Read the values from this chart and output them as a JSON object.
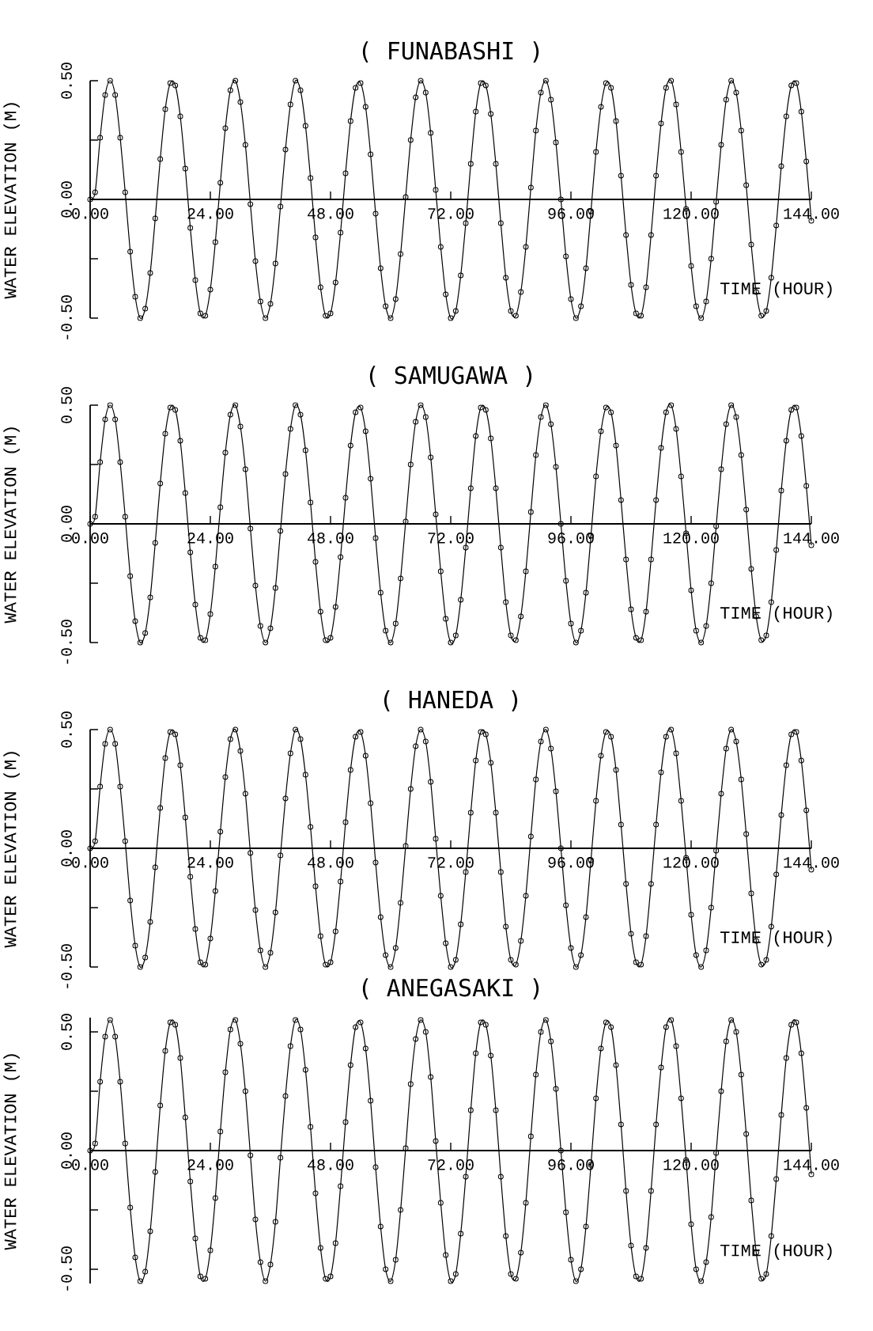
{
  "chart_data": [
    {
      "type": "line",
      "title": "( FUNABASHI )",
      "xlabel": "TIME (HOUR)",
      "ylabel": "WATER ELEVATION (M)",
      "xlim": [
        0,
        144
      ],
      "ylim": [
        -0.5,
        0.5
      ],
      "marker": "circle",
      "xticks": [
        {
          "value": 0,
          "label": "0.00"
        },
        {
          "value": 24,
          "label": "24.00"
        },
        {
          "value": 48,
          "label": "48.00"
        },
        {
          "value": 72,
          "label": "72.00"
        },
        {
          "value": 96,
          "label": "96.00"
        },
        {
          "value": 120,
          "label": "120.00"
        },
        {
          "value": 144,
          "label": "144.00"
        }
      ],
      "yticks": [
        {
          "value": -0.5,
          "label": "-0.50"
        },
        {
          "value": -0.25,
          "label": null
        },
        {
          "value": 0,
          "label": "0.00"
        },
        {
          "value": 0.25,
          "label": null
        },
        {
          "value": 0.5,
          "label": "0.50"
        }
      ],
      "x": [
        0,
        1,
        2,
        3,
        4,
        5,
        6,
        7,
        8,
        9,
        10,
        11,
        12,
        13,
        14,
        15,
        16,
        17,
        18,
        19,
        20,
        21,
        22,
        23,
        24,
        25,
        26,
        27,
        28,
        29,
        30,
        31,
        32,
        33,
        34,
        35,
        36,
        37,
        38,
        39,
        40,
        41,
        42,
        43,
        44,
        45,
        46,
        47,
        48,
        49,
        50,
        51,
        52,
        53,
        54,
        55,
        56,
        57,
        58,
        59,
        60,
        61,
        62,
        63,
        64,
        65,
        66,
        67,
        68,
        69,
        70,
        71,
        72,
        73,
        74,
        75,
        76,
        77,
        78,
        79,
        80,
        81,
        82,
        83,
        84,
        85,
        86,
        87,
        88,
        89,
        90,
        91,
        92,
        93,
        94,
        95,
        96,
        97,
        98,
        99,
        100,
        101,
        102,
        103,
        104,
        105,
        106,
        107,
        108,
        109,
        110,
        111,
        112,
        113,
        114,
        115,
        116,
        117,
        118,
        119,
        120,
        121,
        122,
        123,
        124,
        125,
        126,
        127,
        128,
        129,
        130,
        131,
        132,
        133,
        134,
        135,
        136,
        137,
        138,
        139,
        140,
        141,
        142,
        143,
        144
      ],
      "series": [
        {
          "color": "#000000",
          "values": [
            0.0,
            0.03,
            0.26,
            0.44,
            0.5,
            0.44,
            0.26,
            0.03,
            -0.22,
            -0.41,
            -0.5,
            -0.46,
            -0.31,
            -0.08,
            0.17,
            0.38,
            0.49,
            0.48,
            0.35,
            0.13,
            -0.12,
            -0.34,
            -0.48,
            -0.49,
            -0.38,
            -0.18,
            0.07,
            0.3,
            0.46,
            0.5,
            0.41,
            0.23,
            -0.02,
            -0.26,
            -0.43,
            -0.5,
            -0.44,
            -0.27,
            -0.03,
            0.21,
            0.4,
            0.5,
            0.46,
            0.31,
            0.09,
            -0.16,
            -0.37,
            -0.49,
            -0.48,
            -0.35,
            -0.14,
            0.11,
            0.33,
            0.47,
            0.49,
            0.39,
            0.19,
            -0.06,
            -0.29,
            -0.45,
            -0.5,
            -0.42,
            -0.23,
            0.01,
            0.25,
            0.43,
            0.5,
            0.45,
            0.28,
            0.04,
            -0.2,
            -0.4,
            -0.5,
            -0.47,
            -0.32,
            -0.1,
            0.15,
            0.37,
            0.49,
            0.48,
            0.36,
            0.15,
            -0.1,
            -0.33,
            -0.47,
            -0.49,
            -0.39,
            -0.2,
            0.05,
            0.29,
            0.45,
            0.5,
            0.42,
            0.24,
            0.0,
            -0.24,
            -0.42,
            -0.5,
            -0.45,
            -0.29,
            -0.05,
            0.2,
            0.39,
            0.49,
            0.47,
            0.33,
            0.1,
            -0.15,
            -0.36,
            -0.48,
            -0.49,
            -0.37,
            -0.15,
            0.1,
            0.32,
            0.47,
            0.5,
            0.4,
            0.2,
            -0.04,
            -0.28,
            -0.45,
            -0.5,
            -0.43,
            -0.25,
            -0.01,
            0.23,
            0.42,
            0.5,
            0.45,
            0.29,
            0.06,
            -0.19,
            -0.39,
            -0.49,
            -0.47,
            -0.33,
            -0.11,
            0.14,
            0.35,
            0.48,
            0.49,
            0.37,
            0.16,
            -0.09
          ]
        }
      ]
    },
    {
      "type": "line",
      "title": "( SAMUGAWA )",
      "xlabel": "TIME (HOUR)",
      "ylabel": "WATER ELEVATION (M)",
      "xlim": [
        0,
        144
      ],
      "ylim": [
        -0.5,
        0.5
      ],
      "marker": "circle",
      "xticks": [
        {
          "value": 0,
          "label": "0.00"
        },
        {
          "value": 24,
          "label": "24.00"
        },
        {
          "value": 48,
          "label": "48.00"
        },
        {
          "value": 72,
          "label": "72.00"
        },
        {
          "value": 96,
          "label": "96.00"
        },
        {
          "value": 120,
          "label": "120.00"
        },
        {
          "value": 144,
          "label": "144.00"
        }
      ],
      "yticks": [
        {
          "value": -0.5,
          "label": "-0.50"
        },
        {
          "value": -0.25,
          "label": null
        },
        {
          "value": 0,
          "label": "0.00"
        },
        {
          "value": 0.25,
          "label": null
        },
        {
          "value": 0.5,
          "label": "0.50"
        }
      ],
      "x": [
        0,
        1,
        2,
        3,
        4,
        5,
        6,
        7,
        8,
        9,
        10,
        11,
        12,
        13,
        14,
        15,
        16,
        17,
        18,
        19,
        20,
        21,
        22,
        23,
        24,
        25,
        26,
        27,
        28,
        29,
        30,
        31,
        32,
        33,
        34,
        35,
        36,
        37,
        38,
        39,
        40,
        41,
        42,
        43,
        44,
        45,
        46,
        47,
        48,
        49,
        50,
        51,
        52,
        53,
        54,
        55,
        56,
        57,
        58,
        59,
        60,
        61,
        62,
        63,
        64,
        65,
        66,
        67,
        68,
        69,
        70,
        71,
        72,
        73,
        74,
        75,
        76,
        77,
        78,
        79,
        80,
        81,
        82,
        83,
        84,
        85,
        86,
        87,
        88,
        89,
        90,
        91,
        92,
        93,
        94,
        95,
        96,
        97,
        98,
        99,
        100,
        101,
        102,
        103,
        104,
        105,
        106,
        107,
        108,
        109,
        110,
        111,
        112,
        113,
        114,
        115,
        116,
        117,
        118,
        119,
        120,
        121,
        122,
        123,
        124,
        125,
        126,
        127,
        128,
        129,
        130,
        131,
        132,
        133,
        134,
        135,
        136,
        137,
        138,
        139,
        140,
        141,
        142,
        143,
        144
      ],
      "series": [
        {
          "color": "#000000",
          "values": [
            0.0,
            0.03,
            0.26,
            0.44,
            0.5,
            0.44,
            0.26,
            0.03,
            -0.22,
            -0.41,
            -0.5,
            -0.46,
            -0.31,
            -0.08,
            0.17,
            0.38,
            0.49,
            0.48,
            0.35,
            0.13,
            -0.12,
            -0.34,
            -0.48,
            -0.49,
            -0.38,
            -0.18,
            0.07,
            0.3,
            0.46,
            0.5,
            0.41,
            0.23,
            -0.02,
            -0.26,
            -0.43,
            -0.5,
            -0.44,
            -0.27,
            -0.03,
            0.21,
            0.4,
            0.5,
            0.46,
            0.31,
            0.09,
            -0.16,
            -0.37,
            -0.49,
            -0.48,
            -0.35,
            -0.14,
            0.11,
            0.33,
            0.47,
            0.49,
            0.39,
            0.19,
            -0.06,
            -0.29,
            -0.45,
            -0.5,
            -0.42,
            -0.23,
            0.01,
            0.25,
            0.43,
            0.5,
            0.45,
            0.28,
            0.04,
            -0.2,
            -0.4,
            -0.5,
            -0.47,
            -0.32,
            -0.1,
            0.15,
            0.37,
            0.49,
            0.48,
            0.36,
            0.15,
            -0.1,
            -0.33,
            -0.47,
            -0.49,
            -0.39,
            -0.2,
            0.05,
            0.29,
            0.45,
            0.5,
            0.42,
            0.24,
            0.0,
            -0.24,
            -0.42,
            -0.5,
            -0.45,
            -0.29,
            -0.05,
            0.2,
            0.39,
            0.49,
            0.47,
            0.33,
            0.1,
            -0.15,
            -0.36,
            -0.48,
            -0.49,
            -0.37,
            -0.15,
            0.1,
            0.32,
            0.47,
            0.5,
            0.4,
            0.2,
            -0.04,
            -0.28,
            -0.45,
            -0.5,
            -0.43,
            -0.25,
            -0.01,
            0.23,
            0.42,
            0.5,
            0.45,
            0.29,
            0.06,
            -0.19,
            -0.39,
            -0.49,
            -0.47,
            -0.33,
            -0.11,
            0.14,
            0.35,
            0.48,
            0.49,
            0.37,
            0.16,
            -0.09
          ]
        }
      ]
    },
    {
      "type": "line",
      "title": "( HANEDA )",
      "xlabel": "TIME (HOUR)",
      "ylabel": "WATER ELEVATION (M)",
      "xlim": [
        0,
        144
      ],
      "ylim": [
        -0.5,
        0.5
      ],
      "marker": "circle",
      "xticks": [
        {
          "value": 0,
          "label": "0.00"
        },
        {
          "value": 24,
          "label": "24.00"
        },
        {
          "value": 48,
          "label": "48.00"
        },
        {
          "value": 72,
          "label": "72.00"
        },
        {
          "value": 96,
          "label": "96.00"
        },
        {
          "value": 120,
          "label": "120.00"
        },
        {
          "value": 144,
          "label": "144.00"
        }
      ],
      "yticks": [
        {
          "value": -0.5,
          "label": "-0.50"
        },
        {
          "value": -0.25,
          "label": null
        },
        {
          "value": 0,
          "label": "0.00"
        },
        {
          "value": 0.25,
          "label": null
        },
        {
          "value": 0.5,
          "label": "0.50"
        }
      ],
      "x": [
        0,
        1,
        2,
        3,
        4,
        5,
        6,
        7,
        8,
        9,
        10,
        11,
        12,
        13,
        14,
        15,
        16,
        17,
        18,
        19,
        20,
        21,
        22,
        23,
        24,
        25,
        26,
        27,
        28,
        29,
        30,
        31,
        32,
        33,
        34,
        35,
        36,
        37,
        38,
        39,
        40,
        41,
        42,
        43,
        44,
        45,
        46,
        47,
        48,
        49,
        50,
        51,
        52,
        53,
        54,
        55,
        56,
        57,
        58,
        59,
        60,
        61,
        62,
        63,
        64,
        65,
        66,
        67,
        68,
        69,
        70,
        71,
        72,
        73,
        74,
        75,
        76,
        77,
        78,
        79,
        80,
        81,
        82,
        83,
        84,
        85,
        86,
        87,
        88,
        89,
        90,
        91,
        92,
        93,
        94,
        95,
        96,
        97,
        98,
        99,
        100,
        101,
        102,
        103,
        104,
        105,
        106,
        107,
        108,
        109,
        110,
        111,
        112,
        113,
        114,
        115,
        116,
        117,
        118,
        119,
        120,
        121,
        122,
        123,
        124,
        125,
        126,
        127,
        128,
        129,
        130,
        131,
        132,
        133,
        134,
        135,
        136,
        137,
        138,
        139,
        140,
        141,
        142,
        143,
        144
      ],
      "series": [
        {
          "color": "#000000",
          "values": [
            0.0,
            0.03,
            0.26,
            0.44,
            0.5,
            0.44,
            0.26,
            0.03,
            -0.22,
            -0.41,
            -0.5,
            -0.46,
            -0.31,
            -0.08,
            0.17,
            0.38,
            0.49,
            0.48,
            0.35,
            0.13,
            -0.12,
            -0.34,
            -0.48,
            -0.49,
            -0.38,
            -0.18,
            0.07,
            0.3,
            0.46,
            0.5,
            0.41,
            0.23,
            -0.02,
            -0.26,
            -0.43,
            -0.5,
            -0.44,
            -0.27,
            -0.03,
            0.21,
            0.4,
            0.5,
            0.46,
            0.31,
            0.09,
            -0.16,
            -0.37,
            -0.49,
            -0.48,
            -0.35,
            -0.14,
            0.11,
            0.33,
            0.47,
            0.49,
            0.39,
            0.19,
            -0.06,
            -0.29,
            -0.45,
            -0.5,
            -0.42,
            -0.23,
            0.01,
            0.25,
            0.43,
            0.5,
            0.45,
            0.28,
            0.04,
            -0.2,
            -0.4,
            -0.5,
            -0.47,
            -0.32,
            -0.1,
            0.15,
            0.37,
            0.49,
            0.48,
            0.36,
            0.15,
            -0.1,
            -0.33,
            -0.47,
            -0.49,
            -0.39,
            -0.2,
            0.05,
            0.29,
            0.45,
            0.5,
            0.42,
            0.24,
            0.0,
            -0.24,
            -0.42,
            -0.5,
            -0.45,
            -0.29,
            -0.05,
            0.2,
            0.39,
            0.49,
            0.47,
            0.33,
            0.1,
            -0.15,
            -0.36,
            -0.48,
            -0.49,
            -0.37,
            -0.15,
            0.1,
            0.32,
            0.47,
            0.5,
            0.4,
            0.2,
            -0.04,
            -0.28,
            -0.45,
            -0.5,
            -0.43,
            -0.25,
            -0.01,
            0.23,
            0.42,
            0.5,
            0.45,
            0.29,
            0.06,
            -0.19,
            -0.39,
            -0.49,
            -0.47,
            -0.33,
            -0.11,
            0.14,
            0.35,
            0.48,
            0.49,
            0.37,
            0.16,
            -0.09
          ]
        }
      ]
    },
    {
      "type": "line",
      "title": "( ANEGASAKI )",
      "xlabel": "TIME (HOUR)",
      "ylabel": "WATER ELEVATION (M)",
      "xlim": [
        0,
        144
      ],
      "ylim": [
        -0.56,
        0.56
      ],
      "marker": "circle",
      "xticks": [
        {
          "value": 0,
          "label": "0.00"
        },
        {
          "value": 24,
          "label": "24.00"
        },
        {
          "value": 48,
          "label": "48.00"
        },
        {
          "value": 72,
          "label": "72.00"
        },
        {
          "value": 96,
          "label": "96.00"
        },
        {
          "value": 120,
          "label": "120.00"
        },
        {
          "value": 144,
          "label": "144.00"
        }
      ],
      "yticks": [
        {
          "value": -0.5,
          "label": "-0.50"
        },
        {
          "value": -0.25,
          "label": null
        },
        {
          "value": 0,
          "label": "0.00"
        },
        {
          "value": 0.25,
          "label": null
        },
        {
          "value": 0.5,
          "label": "0.50"
        }
      ],
      "x": [
        0,
        1,
        2,
        3,
        4,
        5,
        6,
        7,
        8,
        9,
        10,
        11,
        12,
        13,
        14,
        15,
        16,
        17,
        18,
        19,
        20,
        21,
        22,
        23,
        24,
        25,
        26,
        27,
        28,
        29,
        30,
        31,
        32,
        33,
        34,
        35,
        36,
        37,
        38,
        39,
        40,
        41,
        42,
        43,
        44,
        45,
        46,
        47,
        48,
        49,
        50,
        51,
        52,
        53,
        54,
        55,
        56,
        57,
        58,
        59,
        60,
        61,
        62,
        63,
        64,
        65,
        66,
        67,
        68,
        69,
        70,
        71,
        72,
        73,
        74,
        75,
        76,
        77,
        78,
        79,
        80,
        81,
        82,
        83,
        84,
        85,
        86,
        87,
        88,
        89,
        90,
        91,
        92,
        93,
        94,
        95,
        96,
        97,
        98,
        99,
        100,
        101,
        102,
        103,
        104,
        105,
        106,
        107,
        108,
        109,
        110,
        111,
        112,
        113,
        114,
        115,
        116,
        117,
        118,
        119,
        120,
        121,
        122,
        123,
        124,
        125,
        126,
        127,
        128,
        129,
        130,
        131,
        132,
        133,
        134,
        135,
        136,
        137,
        138,
        139,
        140,
        141,
        142,
        143,
        144
      ],
      "series": [
        {
          "color": "#000000",
          "values": [
            0.0,
            0.03,
            0.29,
            0.48,
            0.55,
            0.48,
            0.29,
            0.03,
            -0.24,
            -0.45,
            -0.55,
            -0.51,
            -0.34,
            -0.09,
            0.19,
            0.42,
            0.54,
            0.53,
            0.39,
            0.14,
            -0.13,
            -0.37,
            -0.53,
            -0.54,
            -0.42,
            -0.2,
            0.08,
            0.33,
            0.51,
            0.55,
            0.45,
            0.25,
            -0.02,
            -0.29,
            -0.47,
            -0.55,
            -0.48,
            -0.3,
            -0.03,
            0.23,
            0.44,
            0.55,
            0.51,
            0.34,
            0.1,
            -0.18,
            -0.41,
            -0.54,
            -0.53,
            -0.39,
            -0.15,
            0.12,
            0.36,
            0.52,
            0.54,
            0.43,
            0.21,
            -0.07,
            -0.32,
            -0.5,
            -0.55,
            -0.46,
            -0.25,
            0.01,
            0.28,
            0.47,
            0.55,
            0.5,
            0.31,
            0.04,
            -0.22,
            -0.44,
            -0.55,
            -0.52,
            -0.35,
            -0.11,
            0.17,
            0.41,
            0.54,
            0.53,
            0.4,
            0.17,
            -0.11,
            -0.36,
            -0.52,
            -0.54,
            -0.43,
            -0.22,
            0.06,
            0.32,
            0.5,
            0.55,
            0.46,
            0.26,
            0.0,
            -0.26,
            -0.46,
            -0.55,
            -0.5,
            -0.32,
            -0.06,
            0.22,
            0.43,
            0.54,
            0.52,
            0.36,
            0.11,
            -0.17,
            -0.4,
            -0.53,
            -0.54,
            -0.41,
            -0.17,
            0.11,
            0.35,
            0.52,
            0.55,
            0.44,
            0.22,
            -0.04,
            -0.31,
            -0.5,
            -0.55,
            -0.47,
            -0.28,
            -0.01,
            0.25,
            0.46,
            0.55,
            0.5,
            0.32,
            0.07,
            -0.21,
            -0.43,
            -0.54,
            -0.52,
            -0.36,
            -0.12,
            0.15,
            0.39,
            0.53,
            0.54,
            0.41,
            0.18,
            -0.1
          ]
        }
      ]
    }
  ]
}
